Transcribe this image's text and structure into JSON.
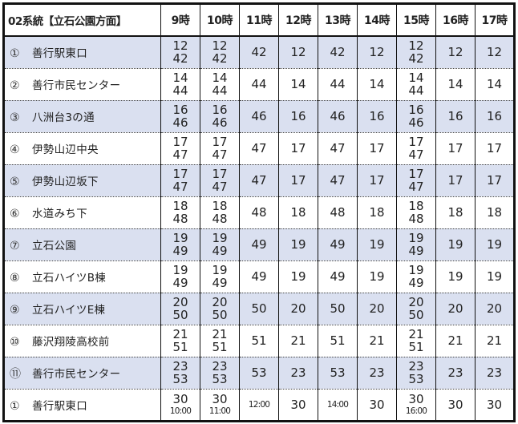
{
  "header": {
    "title": "02系統【立石公園方面】",
    "hours": [
      "9時",
      "10時",
      "11時",
      "12時",
      "13時",
      "14時",
      "15時",
      "16時",
      "17時"
    ]
  },
  "colors": {
    "shaded_row": "#dae0f0",
    "border": "#111111",
    "text": "#222222"
  },
  "stops": [
    {
      "num": "①",
      "name": "善行駅東口",
      "shaded": true,
      "times": [
        [
          "12",
          "42"
        ],
        [
          "12",
          "42"
        ],
        [
          "42"
        ],
        [
          "12"
        ],
        [
          "42"
        ],
        [
          "12"
        ],
        [
          "12",
          "42"
        ],
        [
          "12"
        ],
        [
          "12"
        ]
      ]
    },
    {
      "num": "②",
      "name": "善行市民センター",
      "shaded": false,
      "times": [
        [
          "14",
          "44"
        ],
        [
          "14",
          "44"
        ],
        [
          "44"
        ],
        [
          "14"
        ],
        [
          "44"
        ],
        [
          "14"
        ],
        [
          "14",
          "44"
        ],
        [
          "14"
        ],
        [
          "14"
        ]
      ]
    },
    {
      "num": "③",
      "name": "八洲台3の通",
      "shaded": true,
      "times": [
        [
          "16",
          "46"
        ],
        [
          "16",
          "46"
        ],
        [
          "46"
        ],
        [
          "16"
        ],
        [
          "46"
        ],
        [
          "16"
        ],
        [
          "16",
          "46"
        ],
        [
          "16"
        ],
        [
          "16"
        ]
      ]
    },
    {
      "num": "④",
      "name": "伊勢山辺中央",
      "shaded": false,
      "times": [
        [
          "17",
          "47"
        ],
        [
          "17",
          "47"
        ],
        [
          "47"
        ],
        [
          "17"
        ],
        [
          "47"
        ],
        [
          "17"
        ],
        [
          "17",
          "47"
        ],
        [
          "17"
        ],
        [
          "17"
        ]
      ]
    },
    {
      "num": "⑤",
      "name": "伊勢山辺坂下",
      "shaded": true,
      "times": [
        [
          "17",
          "47"
        ],
        [
          "17",
          "47"
        ],
        [
          "47"
        ],
        [
          "17"
        ],
        [
          "47"
        ],
        [
          "17"
        ],
        [
          "17",
          "47"
        ],
        [
          "17"
        ],
        [
          "17"
        ]
      ]
    },
    {
      "num": "⑥",
      "name": "水道みち下",
      "shaded": false,
      "times": [
        [
          "18",
          "48"
        ],
        [
          "18",
          "48"
        ],
        [
          "48"
        ],
        [
          "18"
        ],
        [
          "48"
        ],
        [
          "18"
        ],
        [
          "18",
          "48"
        ],
        [
          "18"
        ],
        [
          "18"
        ]
      ]
    },
    {
      "num": "⑦",
      "name": "立石公園",
      "shaded": true,
      "times": [
        [
          "19",
          "49"
        ],
        [
          "19",
          "49"
        ],
        [
          "49"
        ],
        [
          "19"
        ],
        [
          "49"
        ],
        [
          "19"
        ],
        [
          "19",
          "49"
        ],
        [
          "19"
        ],
        [
          "19"
        ]
      ]
    },
    {
      "num": "⑧",
      "name": "立石ハイツB棟",
      "shaded": false,
      "times": [
        [
          "19",
          "49"
        ],
        [
          "19",
          "49"
        ],
        [
          "49"
        ],
        [
          "19"
        ],
        [
          "49"
        ],
        [
          "19"
        ],
        [
          "19",
          "49"
        ],
        [
          "19"
        ],
        [
          "19"
        ]
      ]
    },
    {
      "num": "⑨",
      "name": "立石ハイツE棟",
      "shaded": true,
      "times": [
        [
          "20",
          "50"
        ],
        [
          "20",
          "50"
        ],
        [
          "50"
        ],
        [
          "20"
        ],
        [
          "50"
        ],
        [
          "20"
        ],
        [
          "20",
          "50"
        ],
        [
          "20"
        ],
        [
          "20"
        ]
      ]
    },
    {
      "num": "⑩",
      "name": "藤沢翔陵高校前",
      "shaded": false,
      "times": [
        [
          "21",
          "51"
        ],
        [
          "21",
          "51"
        ],
        [
          "51"
        ],
        [
          "21"
        ],
        [
          "51"
        ],
        [
          "21"
        ],
        [
          "21",
          "51"
        ],
        [
          "21"
        ],
        [
          "21"
        ]
      ]
    },
    {
      "num": "⑪",
      "name": "善行市民センター",
      "shaded": true,
      "times": [
        [
          "23",
          "53"
        ],
        [
          "23",
          "53"
        ],
        [
          "53"
        ],
        [
          "23"
        ],
        [
          "53"
        ],
        [
          "23"
        ],
        [
          "23",
          "53"
        ],
        [
          "23"
        ],
        [
          "23"
        ]
      ]
    },
    {
      "num": "①",
      "name": "善行駅東口",
      "shaded": false,
      "times": [
        [
          "30",
          "10:00"
        ],
        [
          "30",
          "11:00"
        ],
        [
          "12:00"
        ],
        [
          "30"
        ],
        [
          "14:00"
        ],
        [
          "30"
        ],
        [
          "30",
          "16:00"
        ],
        [
          "30"
        ],
        [
          "30"
        ]
      ]
    }
  ]
}
